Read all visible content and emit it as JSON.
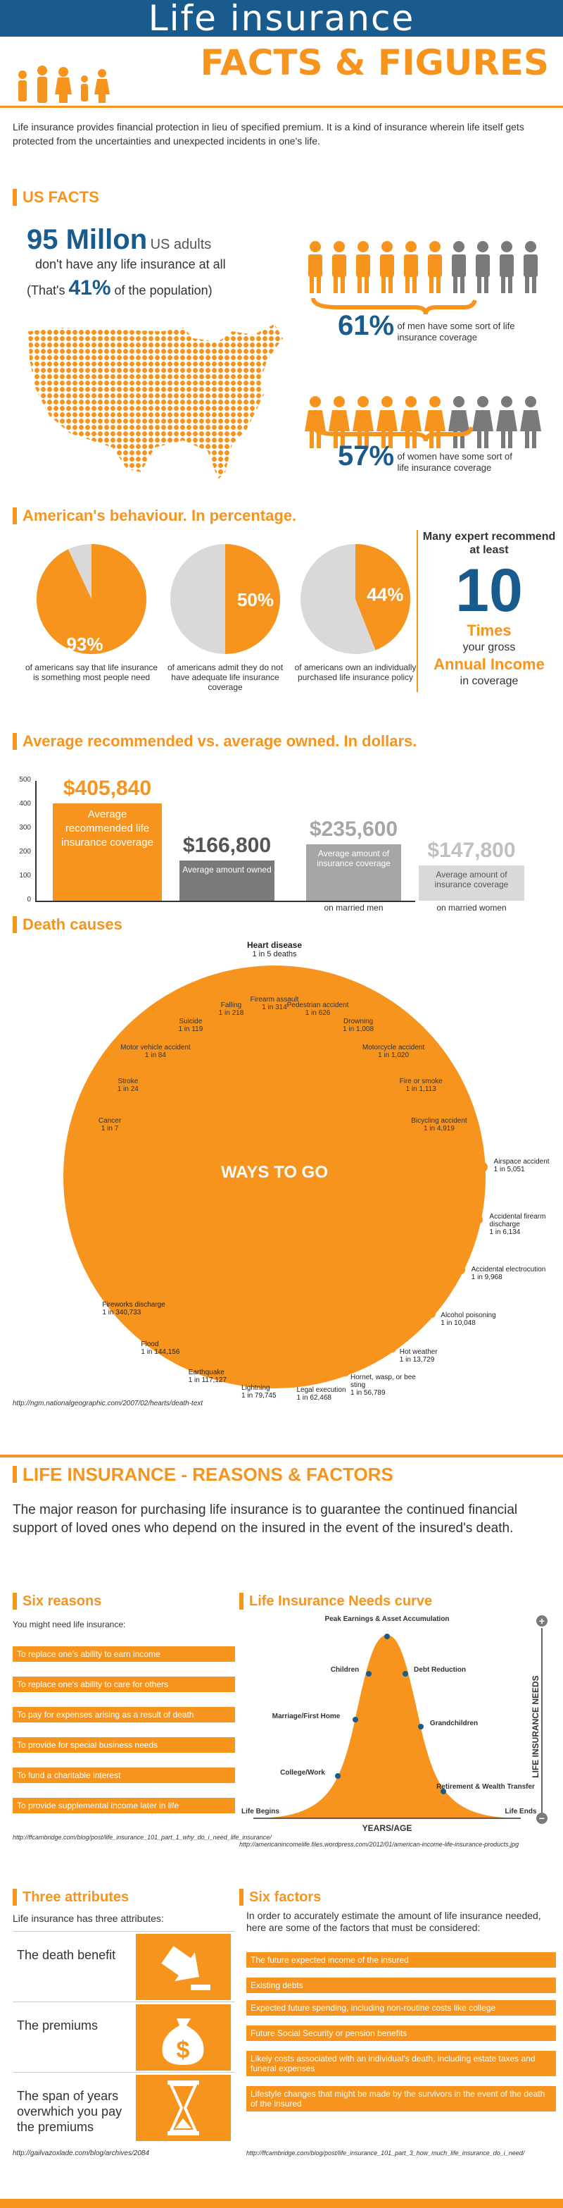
{
  "header": {
    "title": "Life insurance",
    "subtitle": "FACTS & FIGURES",
    "intro": "Life insurance provides financial protection in lieu of specified premium. It is a kind of insurance wherein life itself gets protected from the uncertainties and unexpected incidents in one's life."
  },
  "us_facts": {
    "heading": "US FACTS",
    "big_number": "95 Millon",
    "big_suffix": "US adults",
    "line2": "don't have any life insurance at all",
    "line3_pre": "(That's",
    "line3_pct": "41%",
    "line3_post": "of the population)",
    "men_pct": "61%",
    "men_text": "of men have some sort of life insurance coverage",
    "men_share": 0.6,
    "women_pct": "57%",
    "women_text": "of women have some sort of life insurance coverage",
    "women_share": 0.6
  },
  "behaviour": {
    "heading": "American's behaviour. In percentage.",
    "pies": [
      {
        "label": "93%",
        "value": 93,
        "caption": "of americans say that life insurance is something most people need"
      },
      {
        "label": "50%",
        "value": 50,
        "caption": "of americans admit they do not have adequate life insurance coverage"
      },
      {
        "label": "44%",
        "value": 44,
        "caption": "of americans own an individually purchased life insurance policy"
      }
    ],
    "recommend": {
      "line1": "Many expert recommend at least",
      "number": "10",
      "times": "Times",
      "gross": "your gross",
      "annual": "Annual Income",
      "coverage": "in coverage"
    }
  },
  "average": {
    "heading": "Average recommended vs. average owned. In dollars.",
    "y_ticks": [
      "500",
      "400",
      "300",
      "200",
      "100",
      "0"
    ],
    "bars": [
      {
        "value_label": "$405,840",
        "desc": "Average recommended life insurance coverage",
        "value": 405840
      },
      {
        "value_label": "$166,800",
        "desc": "Average amount owned",
        "value": 166800
      },
      {
        "value_label": "$235,600",
        "desc": "Average amount of insurance coverage",
        "desc2": "on married men",
        "value": 235600
      },
      {
        "value_label": "$147,800",
        "desc": "Average amount of insurance coverage",
        "desc2": "on married women",
        "value": 147800
      }
    ]
  },
  "death": {
    "heading": "Death causes",
    "center": "WAYS TO GO",
    "top_label": "Heart disease",
    "top_odds": "1 in 5 deaths",
    "causes": [
      {
        "name": "Cancer",
        "odds": "1 in 7"
      },
      {
        "name": "Stroke",
        "odds": "1 in 24"
      },
      {
        "name": "Motor vehicle accident",
        "odds": "1 in 84"
      },
      {
        "name": "Suicide",
        "odds": "1 in 119"
      },
      {
        "name": "Falling",
        "odds": "1 in 218"
      },
      {
        "name": "Firearm assault",
        "odds": "1 in 314"
      },
      {
        "name": "Pedestrian accident",
        "odds": "1 in 626"
      },
      {
        "name": "Drowning",
        "odds": "1 in 1,008"
      },
      {
        "name": "Motorcycle accident",
        "odds": "1 in 1,020"
      },
      {
        "name": "Fire or smoke",
        "odds": "1 in 1,113"
      },
      {
        "name": "Bicycling accident",
        "odds": "1 in 4,919"
      },
      {
        "name": "Airspace accident",
        "odds": "1 in 5,051"
      },
      {
        "name": "Accidental firearm discharge",
        "odds": "1 in 6,134"
      },
      {
        "name": "Accidental electrocution",
        "odds": "1 in 9,968"
      },
      {
        "name": "Alcohol poisoning",
        "odds": "1 in 10,048"
      },
      {
        "name": "Hot weather",
        "odds": "1 in 13,729"
      },
      {
        "name": "Hornet, wasp, or bee sting",
        "odds": "1 in 56,789"
      },
      {
        "name": "Legal execution",
        "odds": "1 in 62,468"
      },
      {
        "name": "Lightning",
        "odds": "1 in 79,745"
      },
      {
        "name": "Earthquake",
        "odds": "1 in 117,127"
      },
      {
        "name": "Flood",
        "odds": "1 in 144,156"
      },
      {
        "name": "Fireworks discharge",
        "odds": "1 in 340,733"
      }
    ],
    "source": "http://ngm.nationalgeographic.com/2007/02/hearts/death-text"
  },
  "reasons": {
    "heading": "LIFE INSURANCE - REASONS & FACTORS",
    "intro": "The major reason for purchasing life insurance is to guarantee the continued financial support of loved ones who depend on the insured in the event of the insured's death.",
    "six_heading": "Six reasons",
    "six_lead": "You might need life insurance:",
    "items": [
      "To replace one's ability to earn income",
      "To replace one's ability to care for others",
      "To pay for expenses arising as a result of death",
      "To provide for special business needs",
      "To fund a charitable interest",
      "To provide supplemental income later in life"
    ],
    "source": "http://ffcambridge.com/blog/post/life_insurance_101_part_1_why_do_i_need_life_insurance/"
  },
  "curve": {
    "heading": "Life Insurance Needs curve",
    "peak": "Peak Earnings & Asset Accumulation",
    "children": "Children",
    "debt": "Debt Reduction",
    "marriage": "Marriage/First Home",
    "grandchildren": "Grandchildren",
    "college": "College/Work",
    "retirement": "Retirement & Wealth Transfer",
    "begins": "Life Begins",
    "ends": "Life Ends",
    "x_axis": "YEARS/AGE",
    "y_axis": "LIFE INSURANCE NEEDS",
    "plus": "+",
    "minus": "−",
    "source": "http://americanincomelife.files.wordpress.com/2012/01/american-income-life-insurance-products.jpg"
  },
  "attributes": {
    "heading": "Three attributes",
    "lead": "Life insurance has three attributes:",
    "items": [
      "The death benefit",
      "The premiums",
      "The span of years overwhich you pay the premiums"
    ],
    "icons": [
      "falling-arrow-icon",
      "money-bag-icon",
      "hourglass-icon"
    ],
    "source": "http://gailvazoxlade.com/blog/archives/2084"
  },
  "factors": {
    "heading": "Six factors",
    "lead": "In order to accurately estimate the amount of life insurance needed, here are some of the factors that must be considered:",
    "items": [
      "The future expected income of the insured",
      "Existing debts",
      "Expected future spending, including non-routine costs like college",
      "Future Social Security or pension benefits",
      "Likely costs associated with an individual's death, including estate taxes and funeral expenses",
      "Lifestyle changes that might be made by the survivors in the event of the death of the insured"
    ],
    "source": "http://ffcambridge.com/blog/post/life_insurance_101_part_3_how_much_life_insurance_do_i_need/"
  },
  "colors": {
    "orange": "#f7941d",
    "blue": "#1a5b8e",
    "gray": "#7a7a7a",
    "light_gray": "#d9d9d9"
  }
}
